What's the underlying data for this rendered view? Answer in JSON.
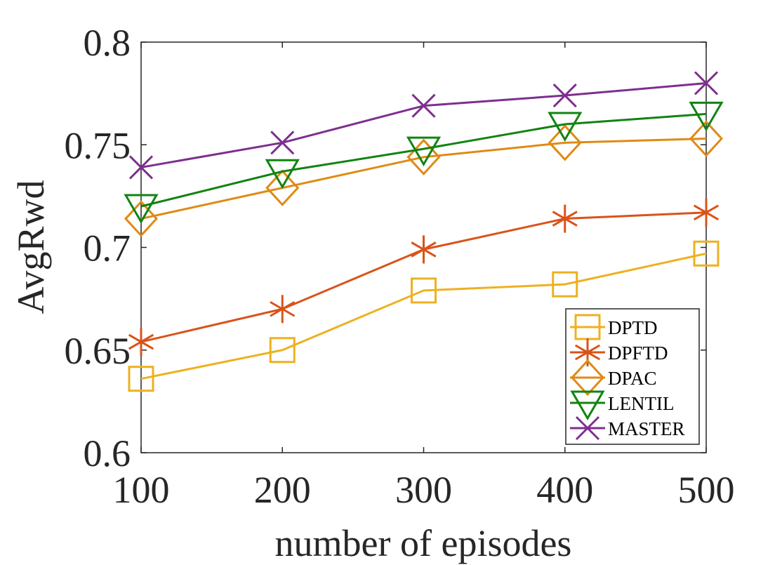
{
  "chart_data": {
    "type": "line",
    "xlabel": "number of episodes",
    "ylabel": "AvgRwd",
    "x": [
      100,
      200,
      300,
      400,
      500
    ],
    "xlim": [
      100,
      500
    ],
    "ylim": [
      0.6,
      0.8
    ],
    "xticks": [
      "100",
      "200",
      "300",
      "400",
      "500"
    ],
    "yticks": [
      "0.6",
      "0.65",
      "0.7",
      "0.75",
      "0.8"
    ],
    "grid": false,
    "legend_position": "bottom-right",
    "series": [
      {
        "name": "DPTD",
        "color": "#EDB120",
        "marker": "square",
        "values": [
          0.636,
          0.65,
          0.679,
          0.682,
          0.697
        ]
      },
      {
        "name": "DPFTD",
        "color": "#D95319",
        "marker": "asterisk",
        "values": [
          0.654,
          0.67,
          0.699,
          0.714,
          0.717
        ]
      },
      {
        "name": "DPAC",
        "color": "#E08A14",
        "marker": "diamond",
        "values": [
          0.714,
          0.729,
          0.744,
          0.751,
          0.753
        ]
      },
      {
        "name": "LENTIL",
        "color": "#128312",
        "marker": "triangle-down",
        "values": [
          0.72,
          0.737,
          0.748,
          0.76,
          0.765
        ]
      },
      {
        "name": "MASTER",
        "color": "#7E2F8E",
        "marker": "x",
        "values": [
          0.739,
          0.751,
          0.769,
          0.774,
          0.78
        ]
      }
    ]
  }
}
